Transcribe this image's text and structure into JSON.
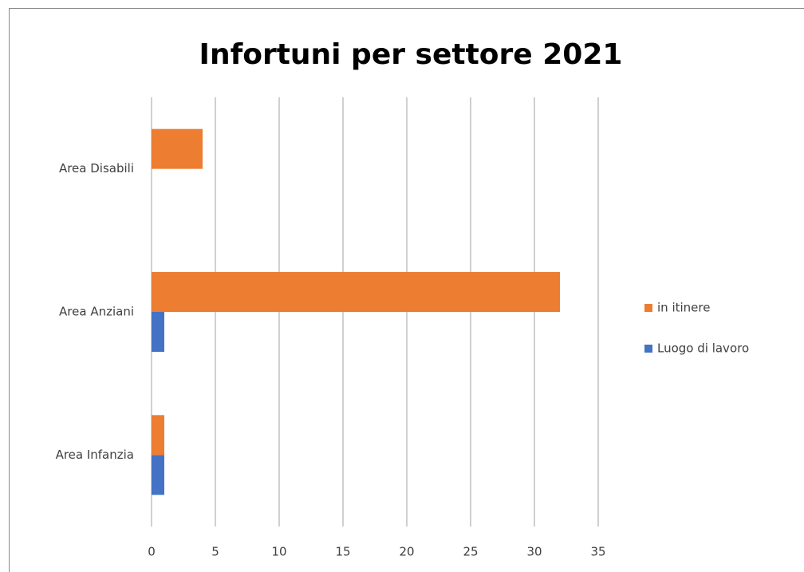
{
  "chart_data": {
    "type": "barh",
    "title": "Infortuni per settore 2021",
    "categories": [
      "Area Infanzia",
      "Area Anziani",
      "Area Disabili"
    ],
    "series": [
      {
        "name": "Luogo di lavoro",
        "color": "#4472c4",
        "values": [
          1,
          1,
          0
        ]
      },
      {
        "name": "in itinere",
        "color": "#ed7d31",
        "values": [
          1,
          32,
          4
        ]
      }
    ],
    "xlim": [
      0,
      35
    ],
    "xticks": [
      0,
      5,
      10,
      15,
      20,
      25,
      30,
      35
    ],
    "grid": true,
    "legend": "right"
  }
}
